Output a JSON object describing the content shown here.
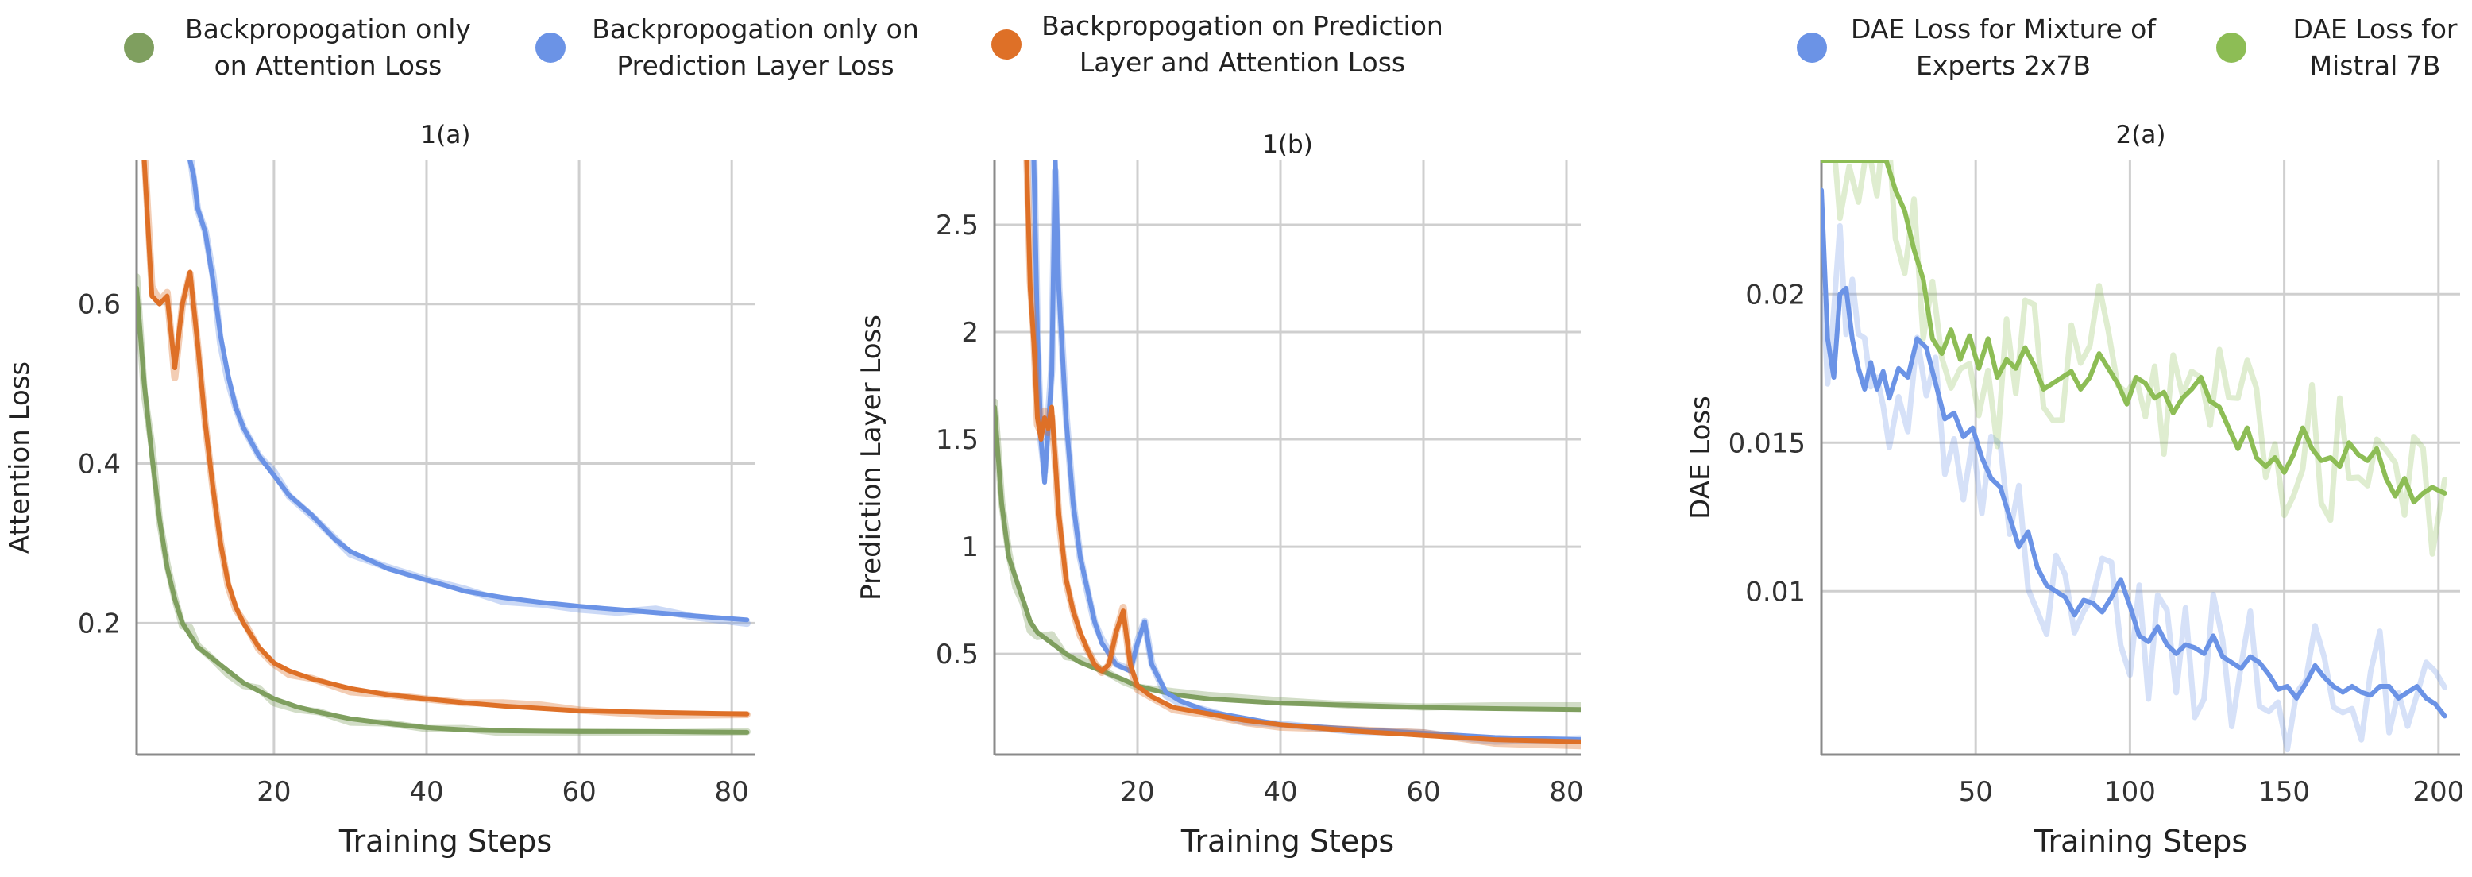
{
  "legend_left": [
    {
      "lines": [
        "Backpropogation only",
        "on Attention Loss"
      ],
      "color": "#7f9f5f"
    },
    {
      "lines": [
        "Backpropogation only on",
        "Prediction Layer Loss"
      ],
      "color": "#6b93e6"
    },
    {
      "lines": [
        "Backpropogation on Prediction",
        "Layer and Attention Loss"
      ],
      "color": "#de7027"
    }
  ],
  "legend_right": [
    {
      "lines": [
        "DAE Loss for Mixture of",
        "Experts 2x7B"
      ],
      "color": "#6b93e6"
    },
    {
      "lines": [
        "DAE Loss for",
        "Mistral 7B"
      ],
      "color": "#8dbd55"
    }
  ],
  "chart_data": [
    {
      "type": "line",
      "title": "1(a)",
      "xlabel": "Training Steps",
      "ylabel": "Attention Loss",
      "xlim": [
        2,
        83
      ],
      "ylim": [
        0.035,
        0.78
      ],
      "xticks": [
        20,
        40,
        60,
        80
      ],
      "yticks": [
        0.2,
        0.4,
        0.6
      ],
      "ytick_labels": [
        "0.2",
        "0.4",
        "0.6"
      ],
      "grid": true,
      "series": [
        {
          "color": "#7f9f5f",
          "x": [
            2,
            3,
            4,
            5,
            6,
            7,
            8,
            9,
            10,
            12,
            14,
            16,
            18,
            20,
            23,
            26,
            30,
            35,
            40,
            45,
            50,
            60,
            70,
            82
          ],
          "y": [
            0.62,
            0.5,
            0.41,
            0.33,
            0.27,
            0.23,
            0.2,
            0.185,
            0.17,
            0.155,
            0.14,
            0.125,
            0.115,
            0.105,
            0.095,
            0.088,
            0.08,
            0.074,
            0.069,
            0.066,
            0.065,
            0.064,
            0.064,
            0.063
          ]
        },
        {
          "color": "#6b93e6",
          "x": [
            9,
            9.5,
            10,
            11,
            12,
            13,
            14,
            15,
            16,
            18,
            20,
            22,
            25,
            28,
            30,
            35,
            40,
            45,
            50,
            55,
            60,
            65,
            70,
            75,
            82
          ],
          "y": [
            0.78,
            0.76,
            0.72,
            0.69,
            0.63,
            0.56,
            0.51,
            0.47,
            0.445,
            0.41,
            0.385,
            0.36,
            0.335,
            0.305,
            0.29,
            0.268,
            0.254,
            0.24,
            0.232,
            0.226,
            0.221,
            0.217,
            0.213,
            0.209,
            0.204
          ]
        },
        {
          "color": "#de7027",
          "x": [
            3,
            4,
            5,
            6,
            7,
            8,
            9,
            10,
            11,
            12,
            13,
            14,
            15,
            16,
            18,
            20,
            22,
            25,
            30,
            35,
            40,
            45,
            50,
            55,
            60,
            70,
            82
          ],
          "y": [
            0.78,
            0.61,
            0.6,
            0.61,
            0.52,
            0.6,
            0.64,
            0.55,
            0.45,
            0.37,
            0.3,
            0.25,
            0.22,
            0.2,
            0.17,
            0.15,
            0.14,
            0.13,
            0.118,
            0.11,
            0.105,
            0.1,
            0.096,
            0.093,
            0.09,
            0.088,
            0.086
          ]
        }
      ]
    },
    {
      "type": "line",
      "title": "1(b)",
      "xlabel": "Training Steps",
      "ylabel": "Prediction Layer Loss",
      "xlim": [
        0,
        82
      ],
      "ylim": [
        0.03,
        2.8
      ],
      "xticks": [
        20,
        40,
        60,
        80
      ],
      "yticks": [
        0.5,
        1,
        1.5,
        2,
        2.5
      ],
      "ytick_labels": [
        "0.5",
        "1",
        "1.5",
        "2",
        "2.5"
      ],
      "grid": true,
      "series": [
        {
          "color": "#7f9f5f",
          "x": [
            0,
            1,
            2,
            3,
            4,
            5,
            6,
            8,
            10,
            12,
            15,
            18,
            20,
            25,
            30,
            40,
            50,
            60,
            70,
            82
          ],
          "y": [
            1.65,
            1.2,
            0.95,
            0.85,
            0.75,
            0.65,
            0.6,
            0.55,
            0.5,
            0.46,
            0.42,
            0.38,
            0.35,
            0.31,
            0.29,
            0.27,
            0.26,
            0.25,
            0.245,
            0.24
          ]
        },
        {
          "color": "#6b93e6",
          "x": [
            5.5,
            6,
            6.5,
            7,
            7.5,
            8,
            8.5,
            9,
            10,
            11,
            12,
            13,
            14,
            15,
            17,
            19,
            20,
            21,
            22,
            24,
            26,
            30,
            35,
            40,
            50,
            60,
            70,
            82
          ],
          "y": [
            2.8,
            2.0,
            1.5,
            1.3,
            1.55,
            1.8,
            2.8,
            2.2,
            1.6,
            1.2,
            0.95,
            0.8,
            0.65,
            0.55,
            0.45,
            0.42,
            0.55,
            0.65,
            0.45,
            0.32,
            0.28,
            0.23,
            0.2,
            0.17,
            0.15,
            0.13,
            0.11,
            0.1
          ]
        },
        {
          "color": "#de7027",
          "x": [
            4.5,
            5,
            5.5,
            6,
            6.5,
            7,
            7.5,
            8,
            8.5,
            9,
            10,
            11,
            12,
            13,
            14,
            15,
            16,
            17,
            18,
            19,
            20,
            22,
            25,
            30,
            35,
            40,
            50,
            60,
            70,
            82
          ],
          "y": [
            2.8,
            2.2,
            1.95,
            1.6,
            1.5,
            1.6,
            1.55,
            1.65,
            1.4,
            1.15,
            0.85,
            0.7,
            0.6,
            0.52,
            0.45,
            0.42,
            0.45,
            0.6,
            0.7,
            0.45,
            0.35,
            0.3,
            0.25,
            0.22,
            0.19,
            0.17,
            0.14,
            0.12,
            0.1,
            0.09
          ]
        }
      ]
    },
    {
      "type": "line",
      "title": "2(a)",
      "xlabel": "Training Steps",
      "ylabel": "DAE Loss",
      "xlim": [
        0,
        207
      ],
      "ylim": [
        0.0045,
        0.0245
      ],
      "xticks": [
        50,
        100,
        150,
        200
      ],
      "yticks": [
        0.01,
        0.015,
        0.02
      ],
      "ytick_labels": [
        "0.01",
        "0.015",
        "0.02"
      ],
      "grid": true,
      "series": [
        {
          "color": "#6b93e6",
          "x": [
            0,
            2,
            4,
            6,
            8,
            10,
            12,
            14,
            16,
            18,
            20,
            22,
            25,
            28,
            31,
            34,
            37,
            40,
            43,
            46,
            49,
            52,
            55,
            58,
            61,
            64,
            67,
            70,
            73,
            76,
            79,
            82,
            85,
            88,
            91,
            94,
            97,
            100,
            103,
            106,
            109,
            112,
            115,
            118,
            121,
            124,
            127,
            130,
            133,
            136,
            139,
            142,
            145,
            148,
            151,
            154,
            157,
            160,
            163,
            166,
            169,
            172,
            175,
            178,
            181,
            184,
            187,
            190,
            193,
            196,
            199,
            202
          ],
          "y": [
            0.0235,
            0.0185,
            0.0172,
            0.02,
            0.0202,
            0.0185,
            0.0175,
            0.0168,
            0.0177,
            0.0168,
            0.0174,
            0.0165,
            0.0175,
            0.0172,
            0.0185,
            0.0182,
            0.017,
            0.0158,
            0.016,
            0.0152,
            0.0155,
            0.0145,
            0.0138,
            0.0135,
            0.0125,
            0.0115,
            0.012,
            0.0108,
            0.0102,
            0.01,
            0.0098,
            0.0092,
            0.0097,
            0.0096,
            0.0093,
            0.0098,
            0.0104,
            0.0095,
            0.0085,
            0.0083,
            0.0088,
            0.0082,
            0.0079,
            0.0082,
            0.0081,
            0.0079,
            0.0085,
            0.0078,
            0.0076,
            0.0074,
            0.0078,
            0.0076,
            0.0072,
            0.0067,
            0.0068,
            0.0064,
            0.0069,
            0.0075,
            0.0071,
            0.0068,
            0.0066,
            0.0068,
            0.0066,
            0.0065,
            0.0068,
            0.0068,
            0.0064,
            0.0066,
            0.0068,
            0.0064,
            0.0062,
            0.0058
          ]
        },
        {
          "color": "#8dbd55",
          "x": [
            0,
            3,
            6,
            9,
            12,
            15,
            18,
            21,
            24,
            27,
            30,
            33,
            36,
            39,
            42,
            45,
            48,
            51,
            54,
            57,
            60,
            63,
            66,
            69,
            72,
            75,
            78,
            81,
            84,
            87,
            90,
            93,
            96,
            99,
            102,
            105,
            108,
            111,
            114,
            117,
            120,
            123,
            126,
            129,
            132,
            135,
            138,
            141,
            144,
            147,
            150,
            153,
            156,
            159,
            162,
            165,
            168,
            171,
            174,
            177,
            180,
            183,
            186,
            189,
            192,
            195,
            198,
            202
          ],
          "y": [
            0.0245,
            0.0245,
            0.0245,
            0.0245,
            0.0245,
            0.0245,
            0.0245,
            0.0245,
            0.0235,
            0.0228,
            0.0215,
            0.0205,
            0.0185,
            0.018,
            0.0188,
            0.0178,
            0.0186,
            0.0175,
            0.0185,
            0.0172,
            0.0178,
            0.0175,
            0.0182,
            0.0176,
            0.0168,
            0.017,
            0.0172,
            0.0174,
            0.0168,
            0.0172,
            0.018,
            0.0175,
            0.017,
            0.0163,
            0.0172,
            0.017,
            0.0165,
            0.0167,
            0.016,
            0.0165,
            0.0168,
            0.0172,
            0.0164,
            0.0162,
            0.0155,
            0.0148,
            0.0155,
            0.0145,
            0.0142,
            0.0145,
            0.014,
            0.0146,
            0.0155,
            0.0148,
            0.0144,
            0.0145,
            0.0142,
            0.015,
            0.0146,
            0.0144,
            0.0148,
            0.0138,
            0.0132,
            0.0138,
            0.013,
            0.0133,
            0.0135,
            0.0133
          ]
        }
      ]
    }
  ]
}
